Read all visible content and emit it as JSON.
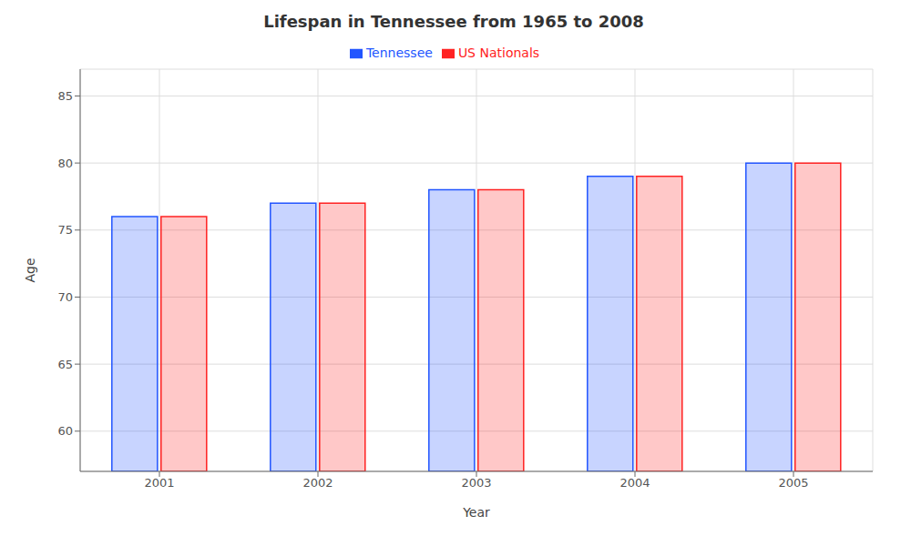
{
  "chart_data": {
    "type": "bar",
    "title": "Lifespan in Tennessee from 1965 to 2008",
    "x_label": "Year",
    "y_label": "Age",
    "categories": [
      "2001",
      "2002",
      "2003",
      "2004",
      "2005"
    ],
    "series": [
      {
        "name": "Tennessee",
        "color": "#2255ff",
        "values": [
          76,
          77,
          78,
          79,
          80
        ]
      },
      {
        "name": "US Nationals",
        "color": "#ff2222",
        "values": [
          76,
          77,
          78,
          79,
          80
        ]
      }
    ],
    "ylim": [
      57,
      87
    ],
    "yticks": [
      60,
      65,
      70,
      75,
      80,
      85
    ],
    "grid": true,
    "legend": "top"
  }
}
